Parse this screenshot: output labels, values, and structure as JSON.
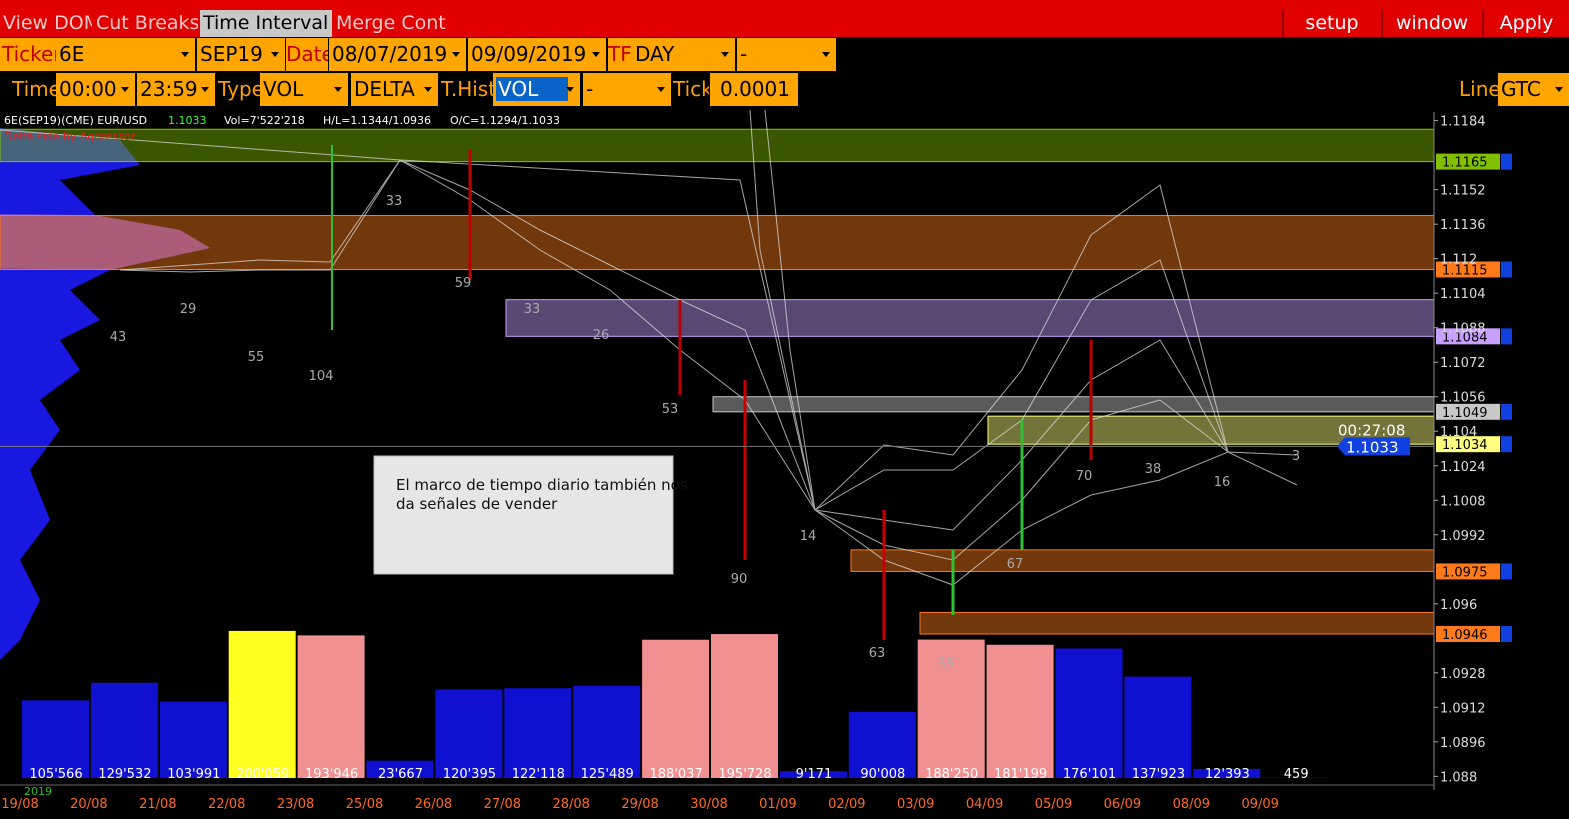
{
  "menu": {
    "tabs": [
      "View DOM",
      "Cut Breaks",
      "Time Interval",
      "Merge Contr"
    ],
    "actions": [
      "setup",
      "window",
      "Apply"
    ]
  },
  "toolbar": {
    "ticker_label": "Ticker",
    "ticker": "6E",
    "contract": "SEP19",
    "date_label": "Date",
    "date_from": "08/07/2019",
    "date_to": "09/09/2019",
    "tf_label": "TF",
    "tf": "DAY",
    "tf_option": "-",
    "time_label": "Time",
    "time_from": "00:00",
    "time_to": "23:59",
    "type_label": "Type",
    "type": "VOL",
    "type_mode": "DELTA",
    "thist_label": "T.Hist",
    "thist": "VOL",
    "thist_option": "-",
    "tick_label": "Tick",
    "tick": "0.0001",
    "line_label": "Line",
    "line": "GTC"
  },
  "info": {
    "symbol": "6E(SEP19)(CME) EUR/USD",
    "last": "1.1033",
    "volume": "Vol=7'522'218",
    "high_low": "H/L=1.1344/1.0936",
    "open_close": "O/C=1.1294/1.1033",
    "mode": "Delta side by Aggressor"
  },
  "annotation": "El marco de tiempo diario también nos da señales de vender",
  "chart_data": {
    "type": "bar",
    "categories": [
      "19/08",
      "20/08",
      "21/08",
      "22/08",
      "23/08",
      "25/08",
      "26/08",
      "27/08",
      "28/08",
      "29/08",
      "30/08",
      "01/09",
      "02/09",
      "03/09",
      "04/09",
      "05/09",
      "06/09",
      "08/09",
      "09/09"
    ],
    "values": [
      105566,
      129532,
      103991,
      200059,
      193946,
      23667,
      120395,
      122118,
      125489,
      188037,
      195728,
      9171,
      90008,
      188250,
      181199,
      176101,
      137923,
      12393,
      459
    ],
    "value_labels": [
      "105'566",
      "129'532",
      "103'991",
      "200'059",
      "193'946",
      "23'667",
      "120'395",
      "122'118",
      "125'489",
      "188'037",
      "195'728",
      "9'171",
      "90'008",
      "188'250",
      "181'199",
      "176'101",
      "137'923",
      "12'393",
      "459"
    ],
    "colors": [
      "#1010d0",
      "#1010d0",
      "#1010d0",
      "#ffff20",
      "#f09090",
      "#1010d0",
      "#1010d0",
      "#1010d0",
      "#1010d0",
      "#f09090",
      "#f09090",
      "#1010d0",
      "#1010d0",
      "#f09090",
      "#f09090",
      "#1010d0",
      "#1010d0",
      "#1010d0",
      "#1010d0"
    ],
    "ylim": [
      0,
      204000
    ],
    "year": "2019",
    "y2lim": [
      1.0876,
      1.1188
    ],
    "y2ticks": [
      1.1184,
      1.1152,
      1.1136,
      1.112,
      1.1104,
      1.1088,
      1.1072,
      1.1056,
      1.104,
      1.1024,
      1.1008,
      1.0992,
      1.096,
      1.0928,
      1.0912,
      1.0896,
      1.088
    ],
    "levels": [
      {
        "value": 1.1165,
        "top": 1.118,
        "color": "#80c000"
      },
      {
        "value": 1.1115,
        "top": 1.114,
        "color": "#ff7a1a"
      },
      {
        "value": 1.1084,
        "top": 1.1101,
        "color": "#c8a0ff"
      },
      {
        "value": 1.1049,
        "top": 1.1056,
        "color": "#c8c8c8"
      },
      {
        "value": 1.1034,
        "top": 1.1047,
        "color": "#ffff80"
      },
      {
        "value": 1.0975,
        "top": 1.0985,
        "color": "#ff7a1a"
      },
      {
        "value": 1.0946,
        "top": 1.0956,
        "color": "#ff7a1a"
      }
    ],
    "last_price": 1.1033,
    "countdown": "00:27:08",
    "clusters": [
      43,
      29,
      55,
      104,
      33,
      59,
      33,
      26,
      53,
      90,
      14,
      63,
      55,
      67,
      70,
      38,
      16,
      3
    ]
  }
}
